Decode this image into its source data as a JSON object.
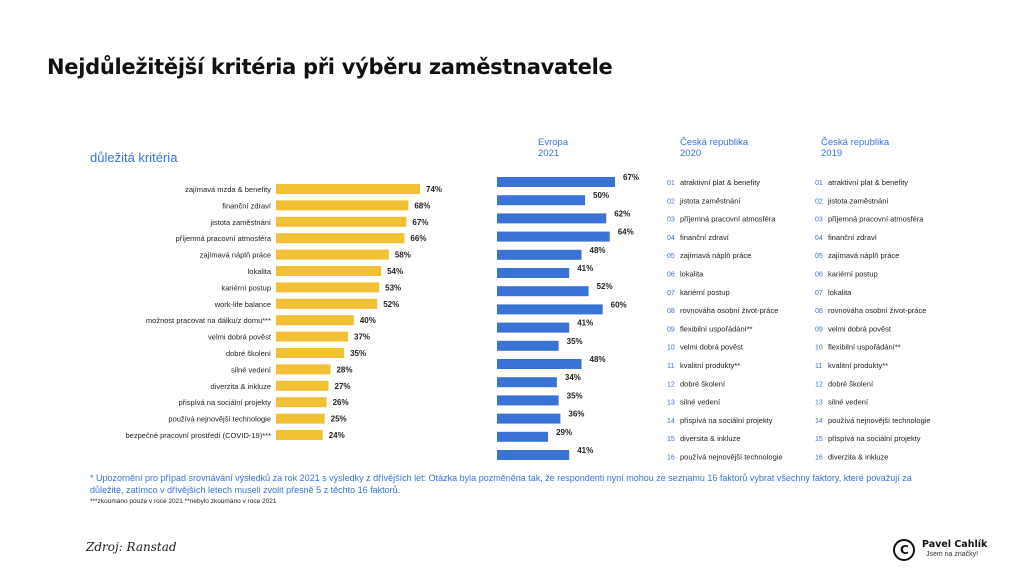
{
  "title": "Nejdůležitější kritéria při výběru zaměstnavatele",
  "subtitle": "důležitá kritéria",
  "headers": {
    "europe": [
      "Evropa",
      "2021"
    ],
    "cz2020": [
      "Česká republika",
      "2020"
    ],
    "cz2019": [
      "Česká republika",
      "2019"
    ]
  },
  "chart_data": {
    "type": "bar",
    "orientation": "horizontal",
    "categories": [
      "zajímavá mzda & benefity",
      "finanční zdraví",
      "jistota zaměstnání",
      "příjemná pracovní atmosféra",
      "zajímavá náplň práce",
      "lokalita",
      "kariérní postup",
      "work-life balance",
      "možnost pracovat na dálku/z domu***",
      "velmi dobrá pověst",
      "dobré školení",
      "silné vedení",
      "diverzita & inkluze",
      "přispívá na sociální projekty",
      "používá nejnovější technologie",
      "bezpečné pracovní prostředí (COVID-19)***"
    ],
    "series": [
      {
        "name": "",
        "color": "#f2c035",
        "values": [
          74,
          68,
          67,
          66,
          58,
          54,
          53,
          52,
          40,
          37,
          35,
          28,
          27,
          26,
          25,
          24
        ],
        "labels": [
          "74%",
          "68%",
          "67%",
          "66%",
          "58%",
          "54%",
          "53%",
          "52%",
          "40%",
          "37%",
          "35%",
          "28%",
          "27%",
          "26%",
          "25%",
          "24%"
        ]
      },
      {
        "name": "Evropa 2021",
        "color": "#3a73d6",
        "values": [
          67,
          50,
          62,
          64,
          48,
          41,
          52,
          60,
          41,
          35,
          48,
          34,
          35,
          36,
          29,
          41
        ],
        "labels": [
          "67%",
          "50%",
          "62%",
          "64%",
          "48%",
          "41%",
          "52%",
          "60%",
          "41%",
          "35%",
          "48%",
          "34%",
          "35%",
          "36%",
          "29%",
          "41%"
        ]
      }
    ],
    "xlim": [
      0,
      100
    ],
    "grid": false
  },
  "rankings": {
    "cz2020": [
      {
        "rank": "01",
        "label": "atraktivní plat & benefity"
      },
      {
        "rank": "02",
        "label": "jistota zaměstnání"
      },
      {
        "rank": "03",
        "label": "příjemná pracovní atmosféra"
      },
      {
        "rank": "04",
        "label": "finanční zdraví"
      },
      {
        "rank": "05",
        "label": "zajímavá náplň práce"
      },
      {
        "rank": "06",
        "label": "lokalita"
      },
      {
        "rank": "07",
        "label": "kariérní postup"
      },
      {
        "rank": "08",
        "label": "rovnováha osobní život-práce"
      },
      {
        "rank": "09",
        "label": "flexibilní uspořádání**"
      },
      {
        "rank": "10",
        "label": "velmi dobrá pověst"
      },
      {
        "rank": "11",
        "label": "kvalitní produkty**"
      },
      {
        "rank": "12",
        "label": "dobré školení"
      },
      {
        "rank": "13",
        "label": "silné vedení"
      },
      {
        "rank": "14",
        "label": "přispívá na sociální projekty"
      },
      {
        "rank": "15",
        "label": "diversita & inkluze"
      },
      {
        "rank": "16",
        "label": "používá nejnovější technologie"
      }
    ],
    "cz2019": [
      {
        "rank": "01",
        "label": "atraktivní plat & benefity"
      },
      {
        "rank": "02",
        "label": "jistota zaměstnání"
      },
      {
        "rank": "03",
        "label": "příjemná pracovní atmosféra"
      },
      {
        "rank": "04",
        "label": "finanční zdraví"
      },
      {
        "rank": "05",
        "label": "zajímavá náplň práce"
      },
      {
        "rank": "06",
        "label": "kariérní postup"
      },
      {
        "rank": "07",
        "label": "lokalita"
      },
      {
        "rank": "08",
        "label": "rovnováha osobní život-práce"
      },
      {
        "rank": "09",
        "label": "velmi dobrá pověst"
      },
      {
        "rank": "10",
        "label": "flexibilní uspořádání**"
      },
      {
        "rank": "11",
        "label": "kvalitní produkty**"
      },
      {
        "rank": "12",
        "label": "dobré školení"
      },
      {
        "rank": "13",
        "label": "silné vedení"
      },
      {
        "rank": "14",
        "label": "používá nejnovější technologie"
      },
      {
        "rank": "15",
        "label": "přispívá na sociální projekty"
      },
      {
        "rank": "16",
        "label": "diverzita & inkluze"
      }
    ]
  },
  "note": "* Upozornění pro případ srovnávání výsledků za rok 2021 s výsledky z dřívějších let: Otázka byla pozměněna tak, že respondenti nyní mohou ze seznamu 16 faktorů vybrat všechny faktory, které považují za důležité, zatímco v dřívějších letech museli zvolit přesně 5 z těchto 16 faktorů.",
  "footnote": "***zkoumáno pouze v roce 2021 **nebylo zkoumáno v roce 2021",
  "source": "Zdroj: Ranstad",
  "brand": {
    "symbol": "C",
    "name": "Pavel Cahlík",
    "tagline": "Jsem na značky!"
  }
}
